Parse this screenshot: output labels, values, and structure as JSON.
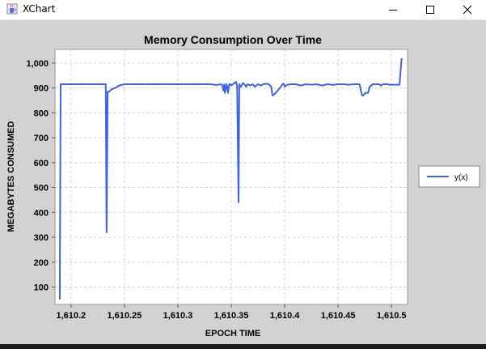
{
  "window": {
    "title": "XChart",
    "icons": {
      "app": "java-cup-icon",
      "minimize": "minimize-icon",
      "maximize": "maximize-icon",
      "close": "close-icon"
    }
  },
  "colors": {
    "series": "#3f63e0",
    "plot_bg": "#ffffff",
    "chart_bg": "#d2d2d2",
    "grid": "#d0d0d0"
  },
  "chart_data": {
    "type": "line",
    "title": "Memory Consumption Over Time",
    "xlabel": "EPOCH TIME",
    "ylabel": "MEGABYTES CONSUMED",
    "xlim": [
      1610.185,
      1610.515
    ],
    "ylim": [
      30,
      1055
    ],
    "xticks": [
      1610.2,
      1610.25,
      1610.3,
      1610.35,
      1610.4,
      1610.45,
      1610.5
    ],
    "xtick_labels": [
      "1,610.2",
      "1,610.25",
      "1,610.3",
      "1,610.35",
      "1,610.4",
      "1,610.45",
      "1,610.5"
    ],
    "yticks": [
      100,
      200,
      300,
      400,
      500,
      600,
      700,
      800,
      900,
      1000
    ],
    "ytick_labels": [
      "100",
      "200",
      "300",
      "400",
      "500",
      "600",
      "700",
      "800",
      "900",
      "1,000"
    ],
    "grid": true,
    "legend_position": "right",
    "series": [
      {
        "name": "y(x)",
        "x": [
          1610.1895,
          1610.1903,
          1610.1915,
          1610.1935,
          1610.1955,
          1610.1975,
          1610.1995,
          1610.2015,
          1610.2035,
          1610.2055,
          1610.2075,
          1610.2095,
          1610.2115,
          1610.2135,
          1610.2155,
          1610.2175,
          1610.2195,
          1610.2215,
          1610.2235,
          1610.2255,
          1610.2275,
          1610.2295,
          1610.2315,
          1610.2325,
          1610.2333,
          1610.2343,
          1610.2355,
          1610.238,
          1610.2415,
          1610.245,
          1610.25,
          1610.26,
          1610.27,
          1610.28,
          1610.29,
          1610.3,
          1610.31,
          1610.32,
          1610.33,
          1610.335,
          1610.338,
          1610.34,
          1610.342,
          1610.3425,
          1610.3435,
          1610.344,
          1610.345,
          1610.3455,
          1610.3462,
          1610.347,
          1610.348,
          1610.349,
          1610.35,
          1610.3515,
          1610.353,
          1610.3545,
          1610.3555,
          1610.3568,
          1610.3575,
          1610.359,
          1610.361,
          1610.362,
          1610.364,
          1610.365,
          1610.368,
          1610.37,
          1610.372,
          1610.375,
          1610.378,
          1610.38,
          1610.3825,
          1610.385,
          1610.3875,
          1610.3885,
          1610.3905,
          1610.3935,
          1610.3965,
          1610.398,
          1610.399,
          1610.4,
          1610.402,
          1610.405,
          1610.41,
          1610.415,
          1610.42,
          1610.425,
          1610.43,
          1610.435,
          1610.44,
          1610.445,
          1610.45,
          1610.455,
          1610.46,
          1610.465,
          1610.47,
          1610.4725,
          1610.4735,
          1610.4755,
          1610.478,
          1610.4795,
          1610.481,
          1610.4825,
          1610.4855,
          1610.488,
          1610.49,
          1610.492,
          1610.494,
          1610.496,
          1610.498,
          1610.5,
          1610.503,
          1610.505,
          1610.5075,
          1610.5095
        ],
        "y": [
          50,
          915,
          915,
          915,
          915,
          915,
          915,
          915,
          915,
          915,
          915,
          915,
          915,
          915,
          915,
          915,
          915,
          915,
          915,
          915,
          915,
          915,
          915,
          915,
          320,
          885,
          885,
          895,
          900,
          910,
          915,
          915,
          915,
          915,
          915,
          915,
          915,
          915,
          915,
          912,
          913,
          915,
          910,
          890,
          915,
          880,
          900,
          915,
          905,
          880,
          915,
          915,
          910,
          915,
          920,
          925,
          905,
          440,
          915,
          905,
          920,
          915,
          905,
          915,
          910,
          915,
          905,
          915,
          910,
          915,
          917,
          915,
          905,
          870,
          875,
          890,
          905,
          915,
          917,
          905,
          912,
          915,
          915,
          910,
          915,
          913,
          915,
          910,
          915,
          912,
          915,
          915,
          913,
          915,
          915,
          870,
          870,
          880,
          880,
          905,
          910,
          915,
          915,
          915,
          910,
          915,
          915,
          915,
          913,
          913,
          913,
          913,
          913,
          1020
        ]
      }
    ]
  }
}
